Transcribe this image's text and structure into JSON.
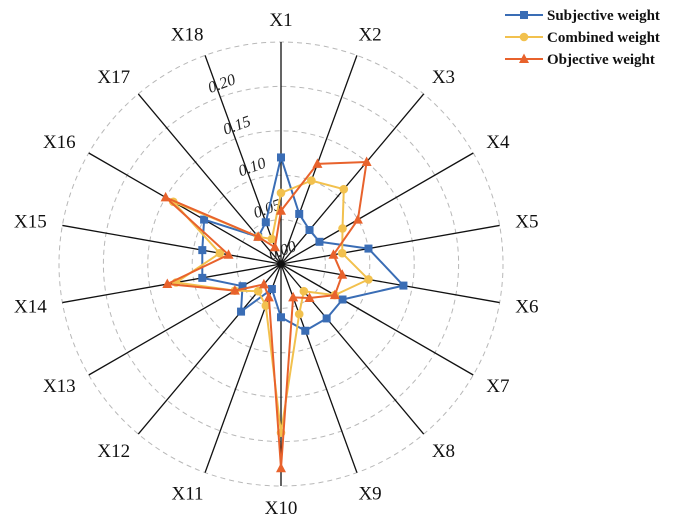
{
  "chart_data": {
    "type": "radar",
    "axes": [
      "X1",
      "X2",
      "X3",
      "X4",
      "X5",
      "X6",
      "X7",
      "X8",
      "X9",
      "X10",
      "X11",
      "X12",
      "X13",
      "X14",
      "X15",
      "X16",
      "X17",
      "X18"
    ],
    "rticks": [
      "0.00",
      "0.05",
      "0.10",
      "0.15",
      "0.20"
    ],
    "rmax": 0.25,
    "grid": "dashed",
    "legend_position": "top-right",
    "series": [
      {
        "name": "Subjective weight",
        "color": "#3a6db5",
        "marker": "square",
        "values": [
          0.12,
          0.06,
          0.05,
          0.05,
          0.1,
          0.14,
          0.08,
          0.08,
          0.08,
          0.06,
          0.03,
          0.07,
          0.05,
          0.09,
          0.09,
          0.1,
          0.04,
          0.05
        ]
      },
      {
        "name": "Combined weight",
        "color": "#f2c14e",
        "marker": "circle",
        "values": [
          0.08,
          0.1,
          0.11,
          0.08,
          0.07,
          0.1,
          0.07,
          0.04,
          0.06,
          0.19,
          0.05,
          0.04,
          0.06,
          0.12,
          0.07,
          0.14,
          0.04,
          0.03
        ]
      },
      {
        "name": "Objective weight",
        "color": "#e8622c",
        "marker": "triangle",
        "values": [
          0.06,
          0.12,
          0.15,
          0.1,
          0.06,
          0.07,
          0.07,
          0.05,
          0.04,
          0.23,
          0.04,
          0.03,
          0.06,
          0.13,
          0.06,
          0.15,
          0.04,
          0.02
        ]
      }
    ]
  }
}
